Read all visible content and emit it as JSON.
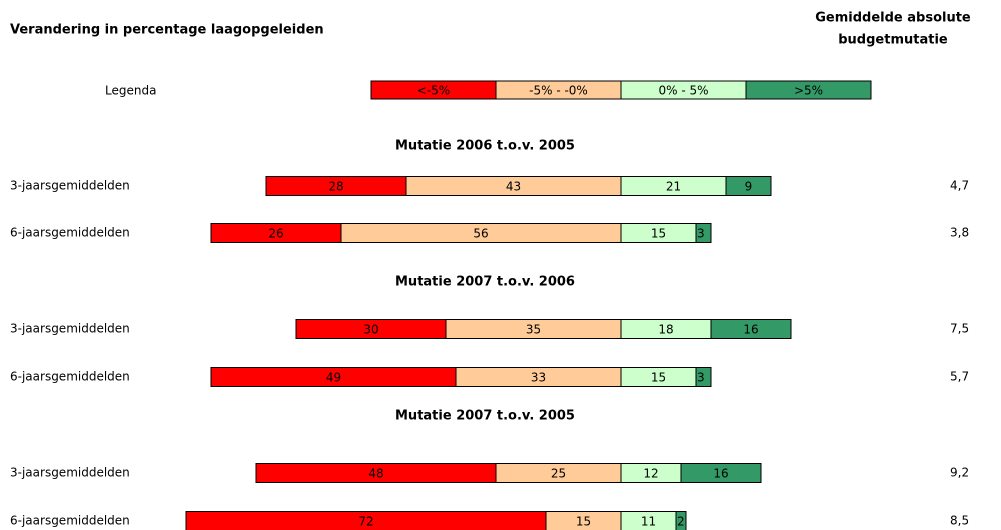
{
  "chart_data": {
    "type": "diverging-bar",
    "title": "Verandering in percentage laagopgeleiden",
    "right_header": [
      "Gemiddelde absolute",
      "budgetmutatie"
    ],
    "legend_label": "Legenda",
    "series": [
      {
        "name": "<-5%",
        "color": "#ff0000"
      },
      {
        "name": "-5% - -0%",
        "color": "#ffcc99"
      },
      {
        "name": "0% - 5%",
        "color": "#ccffcc"
      },
      {
        "name": ">5%",
        "color": "#339966"
      }
    ],
    "groups": [
      {
        "title": "Mutatie 2006 t.o.v. 2005",
        "rows": [
          {
            "label": "3-jaarsgemiddelden",
            "values": [
              28,
              43,
              21,
              9
            ],
            "mutation": 4.7,
            "mutation_label": "4,7"
          },
          {
            "label": "6-jaarsgemiddelden",
            "values": [
              26,
              56,
              15,
              3
            ],
            "mutation": 3.8,
            "mutation_label": "3,8"
          }
        ]
      },
      {
        "title": "Mutatie 2007 t.o.v. 2006",
        "rows": [
          {
            "label": "3-jaarsgemiddelden",
            "values": [
              30,
              35,
              18,
              16
            ],
            "mutation": 7.5,
            "mutation_label": "7,5"
          },
          {
            "label": "6-jaarsgemiddelden",
            "values": [
              49,
              33,
              15,
              3
            ],
            "mutation": 5.7,
            "mutation_label": "5,7"
          }
        ]
      },
      {
        "title": "Mutatie 2007 t.o.v. 2005",
        "rows": [
          {
            "label": "3-jaarsgemiddelden",
            "values": [
              48,
              25,
              12,
              16
            ],
            "mutation": 9.2,
            "mutation_label": "9,2"
          },
          {
            "label": "6-jaarsgemiddelden",
            "values": [
              72,
              15,
              11,
              2
            ],
            "mutation": 8.5,
            "mutation_label": "8,5"
          }
        ]
      }
    ]
  }
}
